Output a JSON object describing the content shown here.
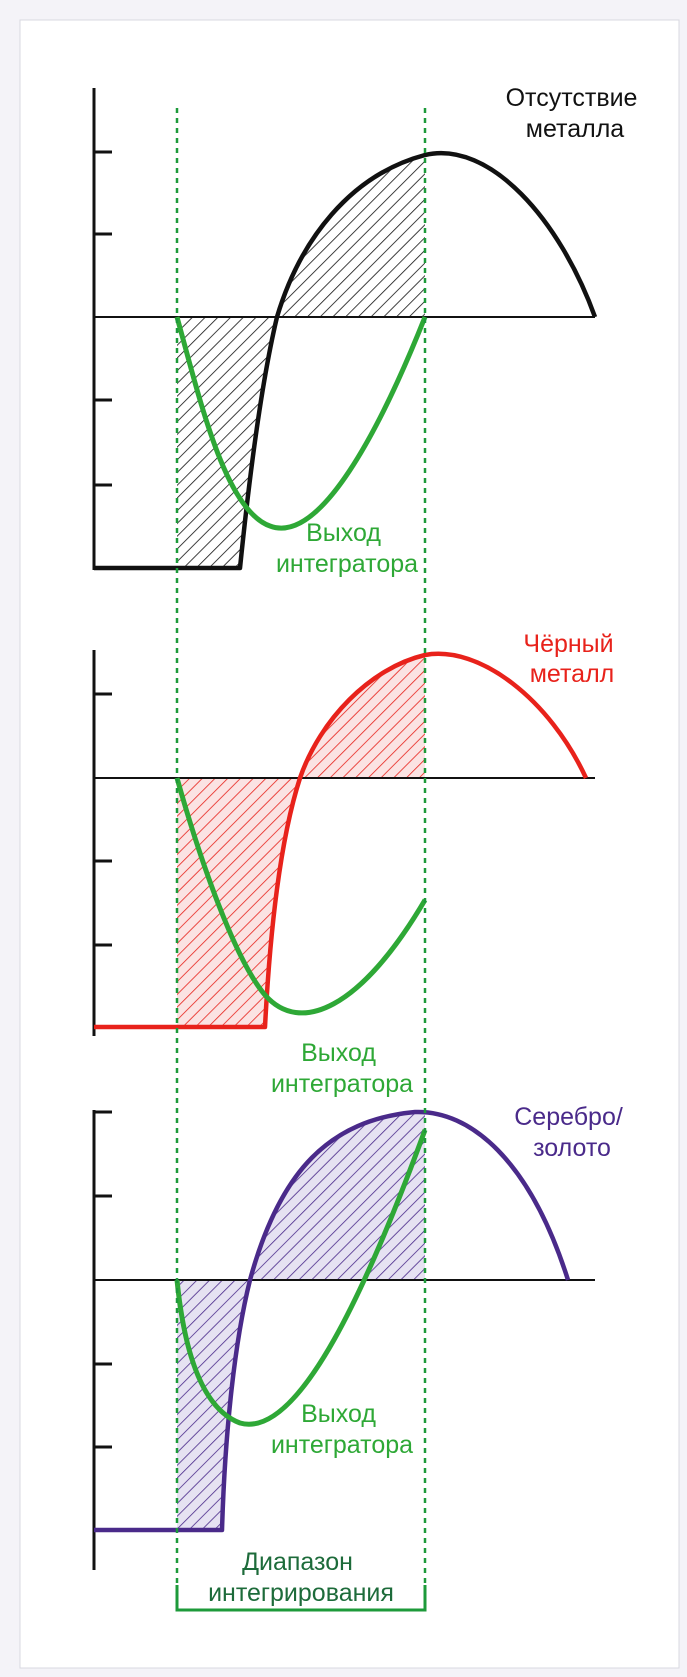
{
  "panels": [
    {
      "id": "no-metal",
      "label_lines": [
        "Отсутствие",
        "металла"
      ],
      "label_color": "#111111",
      "curve_color": "#111111",
      "integrator_label_lines": [
        "Выход",
        "интегратора"
      ]
    },
    {
      "id": "ferrous",
      "label_lines": [
        "Чёрный",
        "металл"
      ],
      "label_color": "#e8221b",
      "curve_color": "#e8221b",
      "integrator_label_lines": [
        "Выход",
        "интегратора"
      ]
    },
    {
      "id": "silver-gold",
      "label_lines": [
        "Серебро/",
        "золото"
      ],
      "label_color": "#4a2a8a",
      "curve_color": "#4a2a8a",
      "integrator_label_lines": [
        "Выход",
        "интегратора"
      ]
    }
  ],
  "integration_range": {
    "label_lines": [
      "Диапазон",
      "интегрирования"
    ]
  },
  "colors": {
    "integrator": "#2ea836",
    "range": "#1d9a3a",
    "axis": "#111111",
    "background_frame": "#ffffff"
  }
}
